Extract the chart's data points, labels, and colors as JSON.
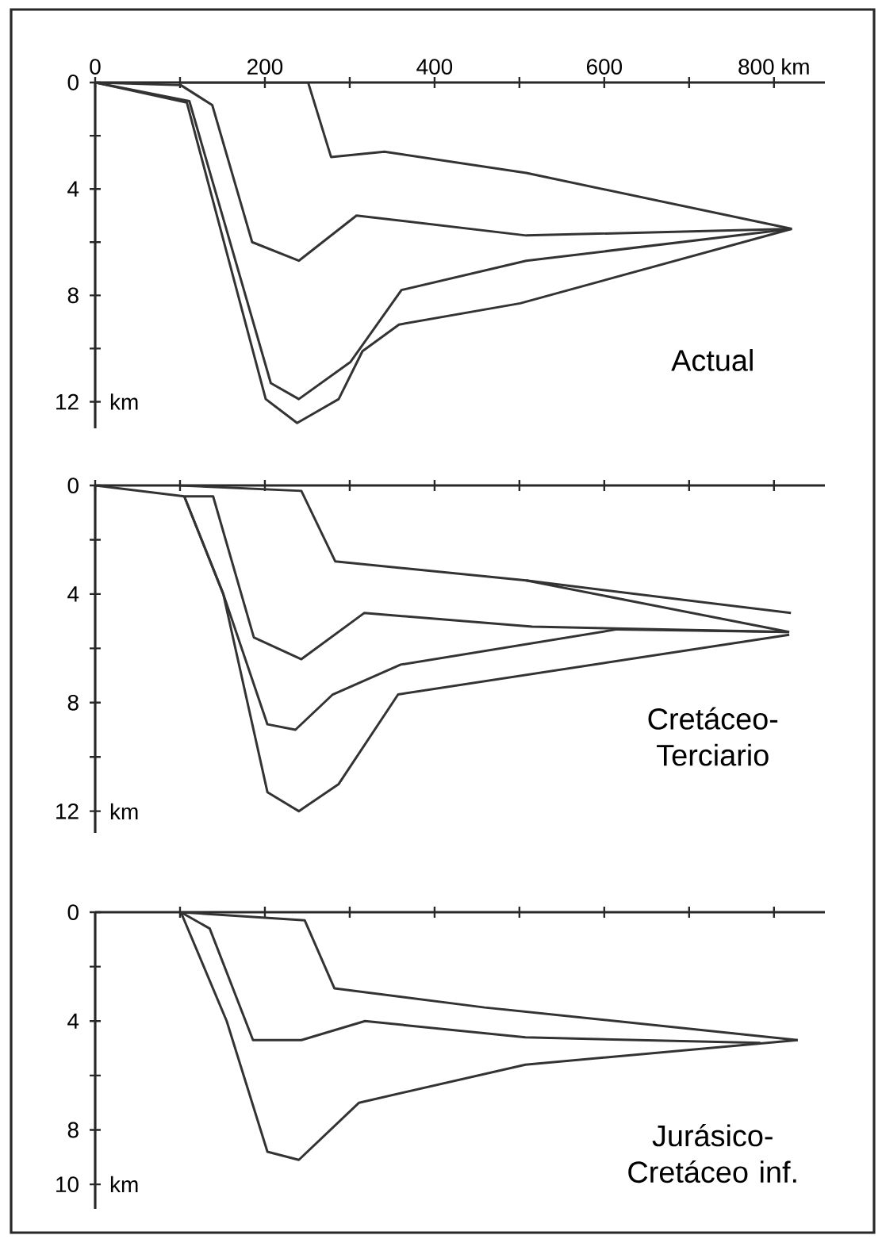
{
  "chart_data": [
    {
      "type": "line",
      "title": "Actual",
      "ylabel": "km",
      "xlim": [
        0,
        860
      ],
      "ylim": [
        13,
        0
      ],
      "xticks": [
        0,
        {
          "value": 100,
          "label": null
        },
        200,
        {
          "value": 300,
          "label": null
        },
        400,
        {
          "value": 500,
          "label": null
        },
        600,
        {
          "value": 700,
          "label": null
        },
        {
          "value": 800,
          "label": "800 km"
        }
      ],
      "yticks": [
        0,
        {
          "value": 2,
          "label": null
        },
        4,
        {
          "value": 6,
          "label": null
        },
        8,
        {
          "value": 10,
          "label": null
        },
        12
      ],
      "series": [
        {
          "color": "#333333",
          "x": [
            100,
            251,
            278,
            341,
            508,
            821
          ],
          "values": [
            0,
            0,
            2.8,
            2.6,
            3.4,
            5.5
          ]
        },
        {
          "color": "#333333",
          "x": [
            0,
            101,
            138,
            185,
            240,
            308,
            508,
            821
          ],
          "values": [
            0,
            0.1,
            0.85,
            6.0,
            6.7,
            5.0,
            5.75,
            5.5
          ]
        },
        {
          "color": "#333333",
          "x": [
            0,
            111,
            207,
            240,
            301,
            361,
            508,
            821
          ],
          "values": [
            0,
            0.7,
            11.3,
            11.9,
            10.5,
            7.8,
            6.7,
            5.5
          ]
        },
        {
          "color": "#333333",
          "x": [
            0,
            108,
            201,
            238,
            287,
            315,
            358,
            501,
            821
          ],
          "values": [
            0,
            0.75,
            11.9,
            12.8,
            11.9,
            10.1,
            9.1,
            8.3,
            5.5
          ]
        }
      ]
    },
    {
      "type": "line",
      "title": "Cretáceo-Terciario",
      "ylabel": "km",
      "xlim": [
        0,
        860
      ],
      "ylim": [
        12.8,
        0
      ],
      "tick_labels": "y",
      "xticks": [
        0,
        100,
        200,
        300,
        400,
        500,
        600,
        700,
        800
      ],
      "yticks": [
        0,
        {
          "value": 2,
          "label": null
        },
        4,
        {
          "value": 6,
          "label": null
        },
        8,
        {
          "value": 10,
          "label": null
        },
        12
      ],
      "series": [
        {
          "color": "#333333",
          "x": [
            100,
            243,
            283,
            508,
            820
          ],
          "values": [
            0,
            0.2,
            2.8,
            3.5,
            4.7
          ]
        },
        {
          "color": "#333333",
          "x": [
            508,
            818
          ],
          "values": [
            3.5,
            5.4
          ]
        },
        {
          "color": "#333333",
          "x": [
            0,
            105,
            139,
            187,
            243,
            317,
            515,
            817
          ],
          "values": [
            0,
            0.4,
            0.4,
            5.6,
            6.4,
            4.7,
            5.2,
            5.4
          ]
        },
        {
          "color": "#333333",
          "x": [
            105,
            151,
            203,
            236,
            280,
            360,
            615,
            818
          ],
          "values": [
            0.4,
            4.0,
            8.8,
            9.0,
            7.7,
            6.6,
            5.3,
            5.4
          ]
        },
        {
          "color": "#333333",
          "x": [
            105,
            151,
            203,
            240,
            287,
            357,
            818
          ],
          "values": [
            0.4,
            4.0,
            11.3,
            12.0,
            11.0,
            7.7,
            5.5
          ]
        }
      ]
    },
    {
      "type": "line",
      "title": "Jurásico-Cretáceo inf.",
      "ylabel": "km",
      "xlim": [
        0,
        860
      ],
      "ylim": [
        10.9,
        0
      ],
      "tick_labels": "y",
      "xticks": [
        100,
        200,
        300,
        400,
        500,
        600,
        700,
        800
      ],
      "yticks": [
        0,
        {
          "value": 2,
          "label": null
        },
        4,
        {
          "value": 6,
          "label": null
        },
        8,
        10
      ],
      "series": [
        {
          "color": "#333333",
          "x": [
            101,
            247,
            282,
            459,
            828
          ],
          "values": [
            0,
            0.3,
            2.8,
            3.5,
            4.7
          ]
        },
        {
          "color": "#333333",
          "x": [
            101,
            135,
            186,
            243,
            318,
            507,
            784
          ],
          "values": [
            0,
            0.6,
            4.7,
            4.7,
            4.0,
            4.6,
            4.8
          ]
        },
        {
          "color": "#333333",
          "x": [
            101,
            155,
            203,
            240,
            311,
            507,
            828
          ],
          "values": [
            0,
            4.0,
            8.8,
            9.1,
            7.0,
            5.6,
            4.7
          ]
        }
      ]
    }
  ]
}
